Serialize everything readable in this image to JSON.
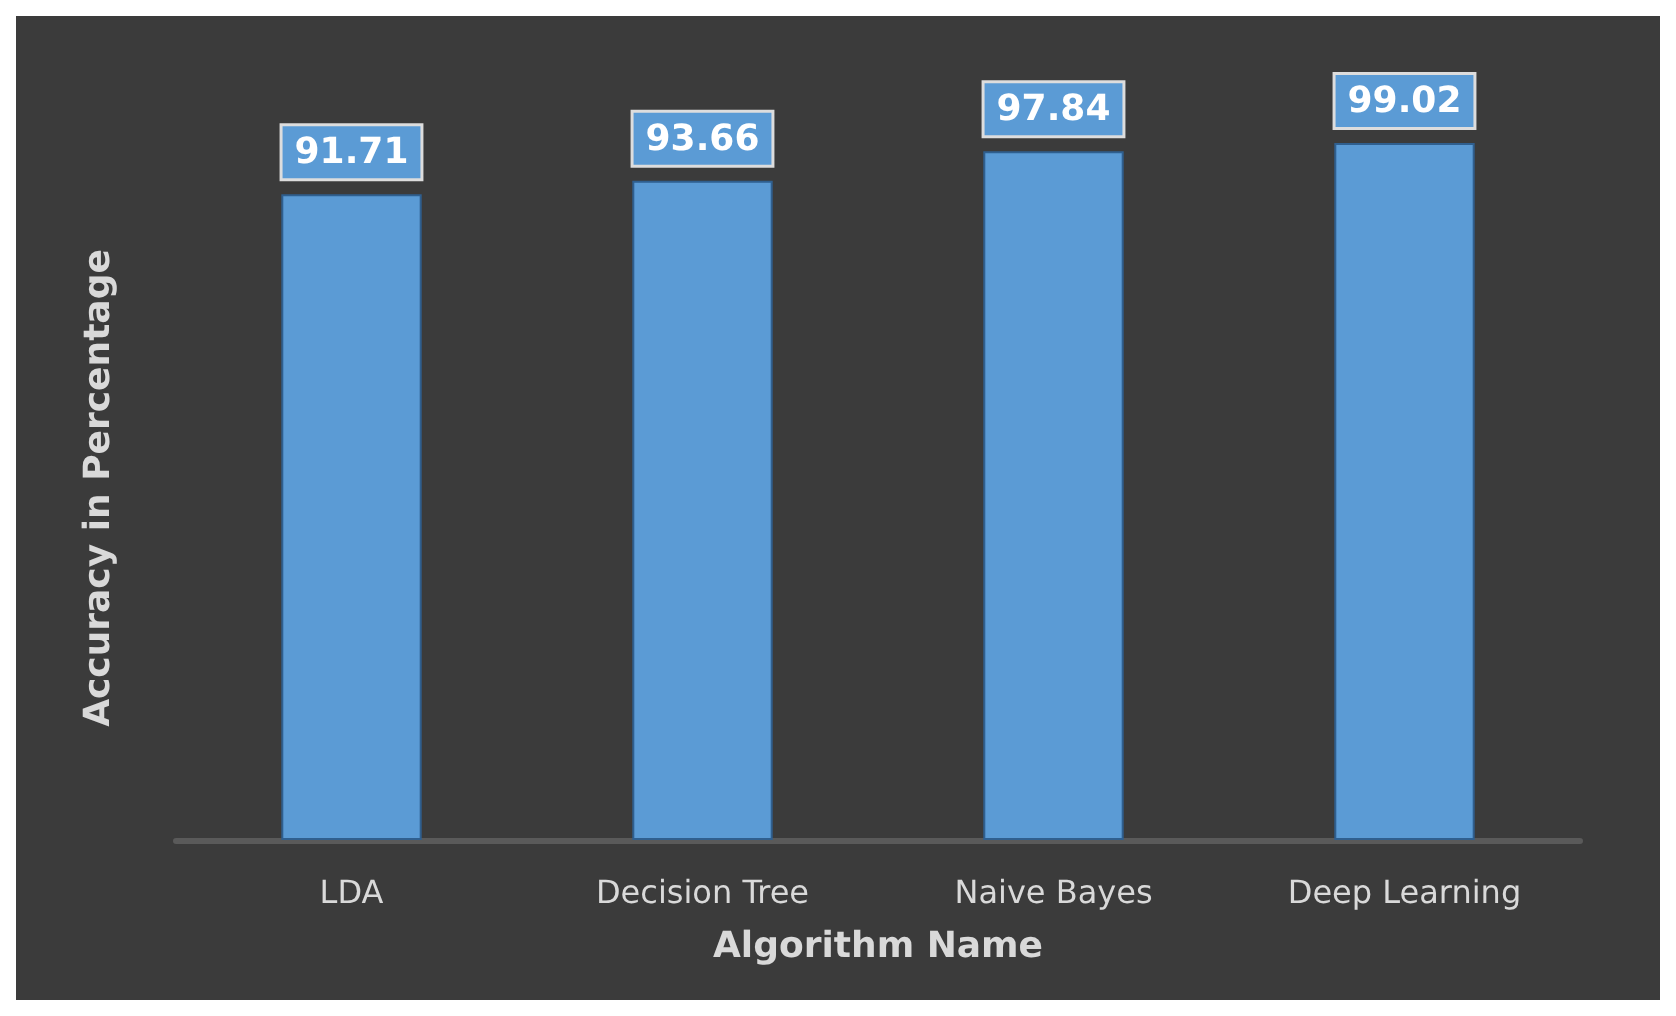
{
  "chart_data": {
    "type": "bar",
    "xlabel": "Algorithm Name",
    "ylabel": "Accuracy in Percentage",
    "categories": [
      "LDA",
      "Decision Tree",
      "Naive Bayes",
      "Deep Learning"
    ],
    "values": [
      91.71,
      93.66,
      97.84,
      99.02
    ],
    "color": "#5b9bd5",
    "data_labels": true
  }
}
